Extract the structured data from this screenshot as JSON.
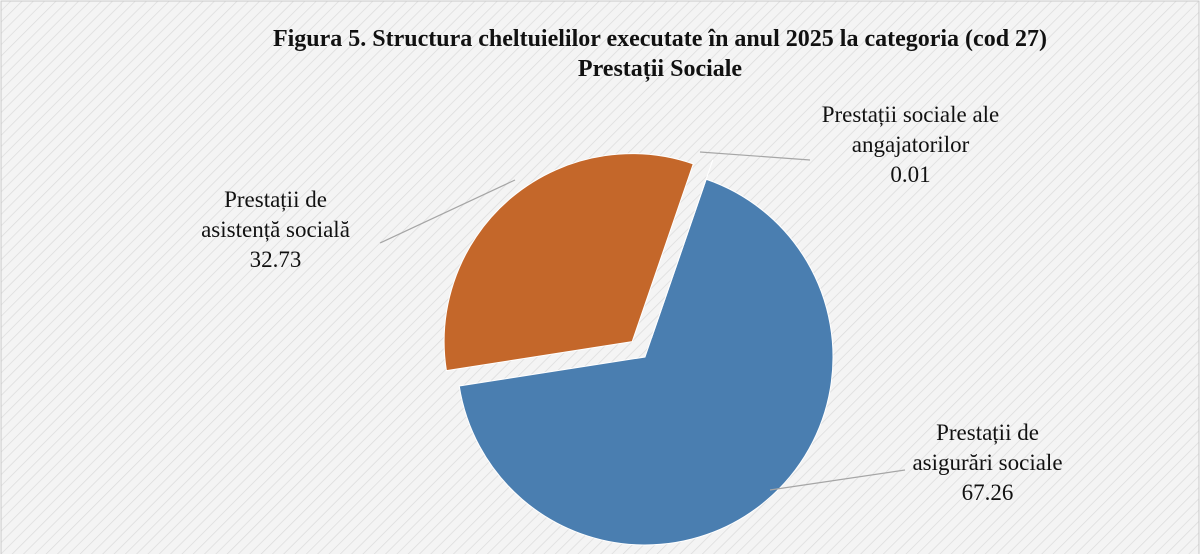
{
  "chart_data": {
    "type": "pie",
    "title": "Figura 5. Structura cheltuielilor executate în anul 2025 la categoria (cod 27) Prestații Sociale",
    "categories": [
      "Prestații de asigurări sociale",
      "Prestații de asistență socială",
      "Prestații sociale ale angajatorilor"
    ],
    "values": [
      67.26,
      32.73,
      0.01
    ],
    "colors": [
      "#4a7eb0",
      "#c4672a",
      "#8fa9c9"
    ]
  }
}
